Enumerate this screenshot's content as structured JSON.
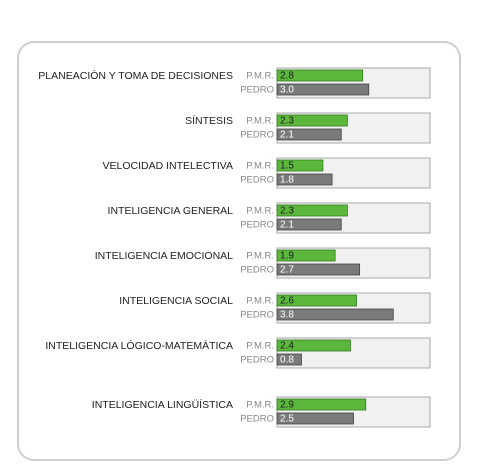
{
  "chart_data": {
    "type": "bar",
    "orientation": "horizontal",
    "categories": [
      "PLANEACIÓN Y TOMA DE DECISIONES",
      "SÍNTESIS",
      "VELOCIDAD INTELECTIVA",
      "INTELIGENCIA GENERAL",
      "INTELIGENCIA EMOCIONAL",
      "INTELIGENCIA SOCIAL",
      "INTELIGENCIA LÓGICO-MATEMÁTICA",
      "INTELIGENCIA LINGÜÍSTICA"
    ],
    "series": [
      {
        "name": "P.M.R.",
        "color": "#5cb83c",
        "values": [
          2.8,
          2.3,
          1.5,
          2.3,
          1.9,
          2.6,
          2.4,
          2.9
        ],
        "value_labels": [
          "2.8",
          "2.3",
          "1.5",
          "2.3",
          "1.9",
          "2.6",
          "2.4",
          "2.9"
        ]
      },
      {
        "name": "PEDRO",
        "color": "#7a7a7a",
        "values": [
          3.0,
          2.1,
          1.8,
          2.1,
          2.7,
          3.8,
          0.8,
          2.5
        ],
        "value_labels": [
          "3.0",
          "2.1",
          "1.8",
          "2.1",
          "2.7",
          "3.8",
          "0.8",
          "2.5"
        ]
      }
    ],
    "xlim": [
      0,
      5
    ]
  }
}
